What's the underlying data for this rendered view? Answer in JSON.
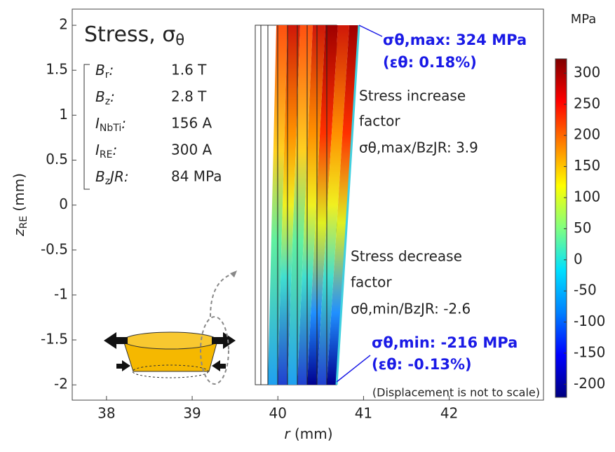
{
  "chart_data": {
    "type": "contour",
    "title": {
      "main": "Stress, σ",
      "sub": "θ"
    },
    "xlabel": {
      "var": "r",
      "unit": " (mm)"
    },
    "ylabel": {
      "var": "z",
      "sub": "RE",
      "unit": " (mm)"
    },
    "xlim": [
      37.6,
      43.1
    ],
    "xticks": [
      38,
      39,
      40,
      41,
      42
    ],
    "ylim": [
      -2.17,
      2.18
    ],
    "yticks": [
      -2,
      -1.5,
      -1,
      -0.5,
      0,
      0.5,
      1,
      1.5,
      2
    ],
    "params": [
      {
        "main": "B",
        "sub": "r",
        "rest": ":",
        "value": "1.6 T"
      },
      {
        "main": "B",
        "sub": "z",
        "rest": ":",
        "value": "2.8 T"
      },
      {
        "main": "I",
        "sub": "NbTi",
        "rest": ":",
        "value": "156 A"
      },
      {
        "main": "I",
        "sub": "RE",
        "rest": ":",
        "value": "300 A"
      },
      {
        "main": "B",
        "sub": "z",
        "rest": "JR:",
        "value": "84 MPa"
      }
    ],
    "annotations": {
      "max": "σθ,max: 324 MPa",
      "max_strain": "(εθ:  0.18%)",
      "increase": [
        "Stress increase",
        "factor",
        "σθ,max/BzJR: 3.9"
      ],
      "decrease": [
        "Stress decrease",
        "factor",
        "σθ,min/BzJR: -2.6"
      ],
      "min": "σθ,min: -216 MPa",
      "min_strain": "(εθ: -0.13%)",
      "note": "(Displacement is not to scale)"
    },
    "colorbar": {
      "unit": "MPa",
      "clim": [
        -221,
        323
      ],
      "ticks": [
        -200,
        -150,
        -100,
        -50,
        0,
        50,
        100,
        150,
        200,
        250,
        300
      ],
      "colormap": [
        "#00007f",
        "#0000ff",
        "#0080ff",
        "#00e0ff",
        "#80ff80",
        "#ffff00",
        "#ff8000",
        "#ff0000",
        "#7f0000"
      ]
    }
  }
}
